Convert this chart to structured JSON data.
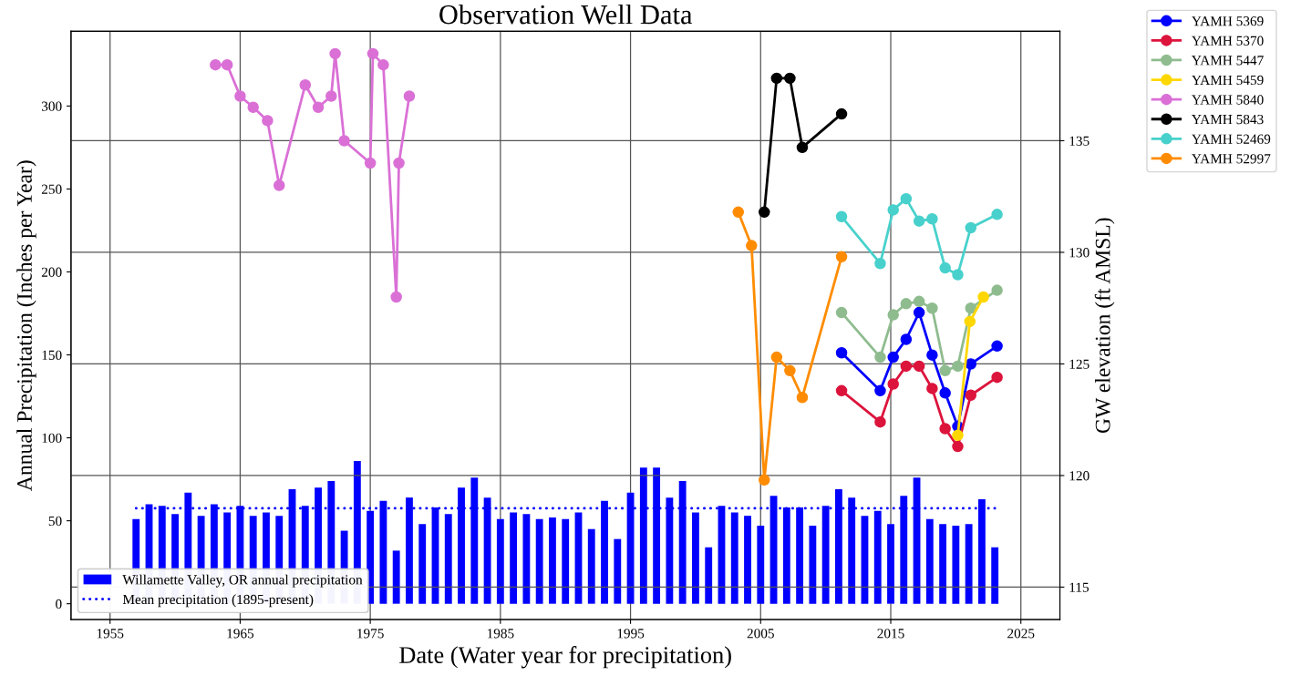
{
  "chart_data": {
    "type": "bar",
    "title": "Observation Well Data",
    "xlabel": "Date (Water year for precipitation)",
    "ylabel": "Annual Precipitation (Inches per Year)",
    "y2label": "GW elevation (ft AMSL)",
    "xlim": [
      1952,
      2028
    ],
    "xticks": [
      1955,
      1965,
      1975,
      1985,
      1995,
      2005,
      2015,
      2025
    ],
    "ylim": [
      -9.5,
      345
    ],
    "yticks": [
      0,
      50,
      100,
      150,
      200,
      250,
      300
    ],
    "y2lim": [
      113.55,
      139.9
    ],
    "y2ticks": [
      115,
      120,
      125,
      130,
      135
    ],
    "grid": true,
    "legend": "top right",
    "marker": "circle",
    "series": [
      {
        "name": "Willamette Valley, OR annual precipitation",
        "color": "#0000ff",
        "x": [
          1957,
          1958,
          1959,
          1960,
          1961,
          1962,
          1963,
          1964,
          1965,
          1966,
          1967,
          1968,
          1969,
          1970,
          1971,
          1972,
          1973,
          1974,
          1975,
          1976,
          1977,
          1978,
          1979,
          1980,
          1981,
          1982,
          1983,
          1984,
          1985,
          1986,
          1987,
          1988,
          1989,
          1990,
          1991,
          1992,
          1993,
          1994,
          1995,
          1996,
          1997,
          1998,
          1999,
          2000,
          2001,
          2002,
          2003,
          2004,
          2005,
          2006,
          2007,
          2008,
          2009,
          2010,
          2011,
          2012,
          2013,
          2014,
          2015,
          2016,
          2017,
          2018,
          2019,
          2020,
          2021,
          2022,
          2023
        ],
        "values": [
          51,
          60,
          59,
          54,
          67,
          53,
          60,
          55,
          59,
          53,
          55,
          53,
          69,
          59,
          70,
          74,
          44,
          86,
          56,
          62,
          32,
          64,
          48,
          58,
          54,
          70,
          76,
          64,
          51,
          55,
          54,
          51,
          52,
          51,
          55,
          45,
          62,
          39,
          67,
          82,
          82,
          64,
          74,
          55,
          34,
          59,
          55,
          53,
          47,
          65,
          58,
          58,
          47,
          59,
          69,
          64,
          53,
          56,
          48,
          65,
          76,
          51,
          48,
          47,
          48,
          63,
          34
        ]
      },
      {
        "name": "Mean precipitation (1895-present)",
        "type": "line",
        "marker": "none",
        "line_style": "dotted",
        "color": "#0000ff",
        "x": [
          1957,
          2023
        ],
        "values": [
          57.5,
          57.5
        ]
      },
      {
        "name": "YAMH 5369",
        "type": "line",
        "axis": "y2",
        "color": "#0000ff",
        "x": [
          2011.22,
          2014.19,
          2015.19,
          2016.18,
          2017.18,
          2018.18,
          2019.18,
          2020.15,
          2021.15,
          2023.17
        ],
        "values": [
          125.5,
          123.8,
          125.3,
          126.1,
          127.3,
          125.4,
          123.7,
          122.2,
          125.0,
          125.8
        ]
      },
      {
        "name": "YAMH 5370",
        "type": "line",
        "axis": "y2",
        "color": "#dc143c",
        "x": [
          2011.22,
          2014.19,
          2015.19,
          2016.18,
          2017.18,
          2018.18,
          2019.18,
          2020.15,
          2021.15,
          2023.17
        ],
        "values": [
          123.8,
          122.4,
          124.1,
          124.9,
          124.9,
          123.9,
          122.1,
          121.3,
          123.6,
          124.4
        ]
      },
      {
        "name": "YAMH 5447",
        "type": "line",
        "axis": "y2",
        "color": "#8fbc8f",
        "x": [
          2011.22,
          2014.19,
          2015.19,
          2016.18,
          2017.18,
          2018.18,
          2019.18,
          2020.15,
          2021.15,
          2023.17
        ],
        "values": [
          127.3,
          125.3,
          127.2,
          127.7,
          127.8,
          127.5,
          124.7,
          124.9,
          127.5,
          128.3
        ]
      },
      {
        "name": "YAMH 5459",
        "type": "line",
        "axis": "y2",
        "color": "#ffd700",
        "x": [
          2020.15,
          2021.08,
          2022.12
        ],
        "values": [
          121.8,
          126.9,
          128.0
        ]
      },
      {
        "name": "YAMH 5840",
        "type": "line",
        "axis": "y2",
        "color": "#da70d6",
        "x": [
          1963.1,
          1964.0,
          1965.0,
          1966.0,
          1967.1,
          1968.0,
          1970.0,
          1971.0,
          1972.0,
          1972.3,
          1973.0,
          1975.0,
          1975.2,
          1976.0,
          1977.0,
          1977.2,
          1978.0
        ],
        "values": [
          138.4,
          138.4,
          137.0,
          136.5,
          135.9,
          133.0,
          137.5,
          136.5,
          137.0,
          138.9,
          135.0,
          134.0,
          138.9,
          138.4,
          128.0,
          134.0,
          137.0
        ]
      },
      {
        "name": "YAMH 5843",
        "type": "line",
        "axis": "y2",
        "color": "#000000",
        "x": [
          2005.28,
          2006.23,
          2007.25,
          2008.2,
          2011.22
        ],
        "values": [
          131.8,
          137.8,
          137.8,
          134.7,
          136.2
        ]
      },
      {
        "name": "YAMH 52469",
        "type": "line",
        "axis": "y2",
        "color": "#48d1cc",
        "x": [
          2011.22,
          2014.19,
          2015.19,
          2016.18,
          2017.18,
          2018.18,
          2019.18,
          2020.15,
          2021.15,
          2023.17
        ],
        "values": [
          131.6,
          129.5,
          131.9,
          132.4,
          131.4,
          131.5,
          129.3,
          129.0,
          131.1,
          131.7
        ]
      },
      {
        "name": "YAMH 52997",
        "type": "line",
        "axis": "y2",
        "color": "#ff8c00",
        "x": [
          2003.28,
          2004.3,
          2005.28,
          2006.23,
          2007.25,
          2008.2,
          2011.22
        ],
        "values": [
          131.8,
          130.3,
          119.8,
          125.3,
          124.7,
          123.5,
          129.8
        ]
      }
    ]
  }
}
